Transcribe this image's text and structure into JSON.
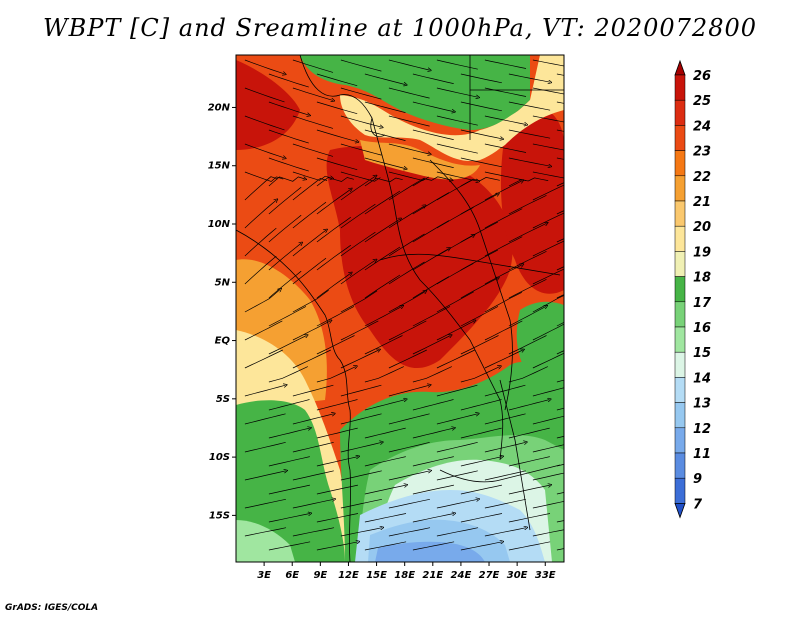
{
  "title": "WBPT [C] and Sreamline at 1000hPa, VT: 2020072800",
  "footer": "GrADS: IGES/COLA",
  "map": {
    "variable": "Wet-bulb potential temperature",
    "units": "C",
    "level": "1000hPa",
    "valid_time": "2020072800",
    "lon_range": [
      0,
      35
    ],
    "lat_range": [
      -19,
      24.5
    ],
    "lat_ticks": [
      {
        "value": 20,
        "label": "20N"
      },
      {
        "value": 15,
        "label": "15N"
      },
      {
        "value": 10,
        "label": "10N"
      },
      {
        "value": 5,
        "label": "5N"
      },
      {
        "value": 0,
        "label": "EQ"
      },
      {
        "value": -5,
        "label": "5S"
      },
      {
        "value": -10,
        "label": "10S"
      },
      {
        "value": -15,
        "label": "15S"
      }
    ],
    "lon_ticks": [
      {
        "value": 3,
        "label": "3E"
      },
      {
        "value": 6,
        "label": "6E"
      },
      {
        "value": 9,
        "label": "9E"
      },
      {
        "value": 12,
        "label": "12E"
      },
      {
        "value": 15,
        "label": "15E"
      },
      {
        "value": 18,
        "label": "18E"
      },
      {
        "value": 21,
        "label": "21E"
      },
      {
        "value": 24,
        "label": "24E"
      },
      {
        "value": 27,
        "label": "27E"
      },
      {
        "value": 30,
        "label": "30E"
      },
      {
        "value": 33,
        "label": "33E"
      }
    ]
  },
  "colorbar": {
    "levels": [
      {
        "label": "26",
        "color": "#a50000"
      },
      {
        "label": "25",
        "color": "#c8140a"
      },
      {
        "label": "24",
        "color": "#dc2d12"
      },
      {
        "label": "23",
        "color": "#eb4b14"
      },
      {
        "label": "22",
        "color": "#f57814"
      },
      {
        "label": "21",
        "color": "#f5a032"
      },
      {
        "label": "20",
        "color": "#fac86e"
      },
      {
        "label": "19",
        "color": "#fde69a"
      },
      {
        "label": "18",
        "color": "#f0f0b4"
      },
      {
        "label": "17",
        "color": "#46b446"
      },
      {
        "label": "16",
        "color": "#78d278"
      },
      {
        "label": "15",
        "color": "#a0e6a0"
      },
      {
        "label": "14",
        "color": "#dcf5e6"
      },
      {
        "label": "13",
        "color": "#b4dcf5"
      },
      {
        "label": "12",
        "color": "#96c8f0"
      },
      {
        "label": "11",
        "color": "#78aaeb"
      },
      {
        "label": "9",
        "color": "#5a8ce1"
      },
      {
        "label": "7",
        "color": "#3c6ed7"
      }
    ],
    "bottom_color": "#2050c8"
  }
}
